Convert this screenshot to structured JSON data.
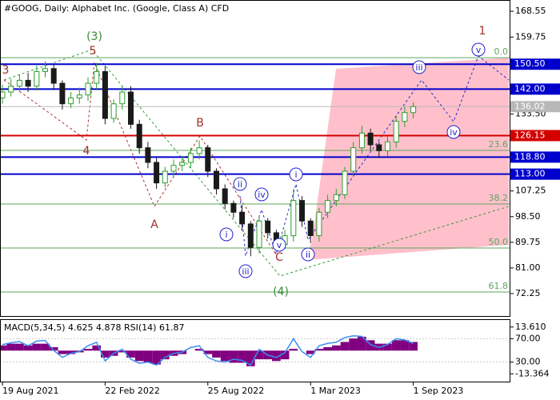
{
  "chart_data": [
    {
      "type": "candlestick",
      "title": "#GOOG, Daily:  Alphabet Inc. (Google, Class A) CFD",
      "categories": [
        "19 Aug 2021",
        null,
        null,
        null,
        null,
        null,
        null,
        null,
        null,
        null,
        null,
        null,
        "22 Feb 2022",
        null,
        null,
        null,
        null,
        null,
        null,
        null,
        null,
        null,
        null,
        null,
        "25 Aug 2022",
        null,
        null,
        null,
        null,
        null,
        null,
        null,
        null,
        null,
        null,
        null,
        "1 Mar 2023",
        null,
        null,
        null,
        null,
        null,
        null,
        null,
        null,
        null,
        null,
        null,
        "1 Sep 2023"
      ],
      "open": [
        139,
        141,
        143,
        145,
        143,
        148,
        149,
        144,
        137,
        139,
        140,
        144,
        148,
        132,
        137,
        141,
        130,
        122,
        117,
        110,
        114,
        116,
        117,
        120,
        122,
        114,
        108,
        103,
        100,
        96,
        88,
        97,
        93,
        89,
        92,
        104,
        97,
        92,
        100,
        104,
        106,
        114,
        122,
        127,
        123,
        121,
        124,
        131,
        134
      ],
      "high": [
        143.5,
        145.5,
        147,
        147.5,
        150,
        151.5,
        150.5,
        145,
        141,
        142.5,
        146,
        151,
        150,
        138.5,
        143,
        143,
        131.5,
        124,
        118.5,
        115.5,
        118,
        119,
        122,
        124.5,
        123,
        115,
        109.5,
        104,
        102.5,
        97,
        99,
        98,
        94,
        94,
        108,
        105.5,
        98,
        101.5,
        106,
        108,
        115.5,
        124,
        129.5,
        128.5,
        124,
        126,
        133,
        136,
        137.5
      ],
      "low": [
        137,
        139.5,
        141,
        141,
        141.5,
        146,
        142,
        135,
        135.5,
        137,
        138,
        142,
        130,
        130.5,
        135,
        128.5,
        120,
        115,
        108,
        108.5,
        112,
        114,
        115,
        118,
        112,
        106,
        101,
        98,
        94,
        85,
        86,
        91,
        87,
        87.5,
        90,
        95,
        89.5,
        90,
        98,
        102,
        104.5,
        112,
        120,
        121,
        118.5,
        119,
        122,
        129,
        132
      ],
      "close": [
        141,
        143,
        145,
        143,
        148,
        149,
        144,
        137,
        139,
        140,
        144,
        148,
        132,
        137,
        141,
        130,
        122,
        117,
        110,
        114,
        116,
        117,
        120,
        122,
        114,
        108,
        103,
        100,
        96,
        88,
        97,
        93,
        89,
        92,
        104,
        97,
        92,
        100,
        104,
        106,
        114,
        122,
        127,
        123,
        121,
        124,
        131,
        134,
        136.02
      ],
      "up_color": "#2e9e2e",
      "down_color": "#1a1a1a",
      "ylim": [
        64.6,
        172.4
      ],
      "yticks": [
        168.55,
        159.75,
        {
          "value": 133.5,
          "label": "133.50"
        },
        107.25,
        {
          "value": 98.5,
          "label": "98.50"
        },
        89.75,
        {
          "value": 81,
          "label": "81.00"
        },
        72.25
      ],
      "levels": [
        {
          "value": 150.5,
          "label": "150.50",
          "color": "#0000cd"
        },
        {
          "value": 142,
          "label": "142.00",
          "color": "#0000cd"
        },
        {
          "value": 126.15,
          "label": "126.15",
          "color": "#d40000"
        },
        {
          "value": 118.8,
          "label": "118.80",
          "color": "#0000cd"
        },
        {
          "value": 113,
          "label": "113.00",
          "color": "#0000cd"
        }
      ],
      "last_price": {
        "value": 136.02,
        "label": "136.02",
        "color": "#b8b8b8"
      },
      "fibonacci": [
        {
          "value": 152.7,
          "label": "0.0"
        },
        {
          "value": 121.1,
          "label": "23.6"
        },
        {
          "value": 102.8,
          "label": "38.2"
        },
        {
          "value": 87.8,
          "label": "50.0"
        },
        {
          "value": 72.8,
          "label": "61.8"
        }
      ],
      "fib_color": "#5fa55f",
      "annotations": [
        "3",
        "(3)",
        "5",
        "4",
        "B",
        "A",
        "i",
        "ii",
        "iii",
        "iv",
        "v",
        "C",
        "(4)",
        "i",
        "ii",
        "iii",
        "iv",
        "v",
        "1"
      ]
    },
    {
      "type": "indicator",
      "label": "MACD(5,34,5) 4.625 4.878 RSI(14) 61.87",
      "ylim": [
        -17.86,
        17.66
      ],
      "yticks": [
        {
          "value": 13.61,
          "label": "13.610"
        },
        {
          "value": -13.364,
          "label": "-13.364"
        }
      ],
      "y2lim": [
        -3.3,
        102
      ],
      "y2ticks": [
        {
          "value": 70,
          "label": "70.00"
        },
        {
          "value": 30,
          "label": "30.00"
        }
      ],
      "macd_color": "#800080",
      "macd_values": [
        3,
        4,
        4,
        3,
        4,
        4,
        2,
        -2,
        -2,
        -1,
        1,
        3,
        -4,
        -3,
        -1,
        -4,
        -6,
        -7,
        -8,
        -5,
        -3,
        -2,
        0,
        1,
        -2,
        -4,
        -6,
        -7,
        -7,
        -9,
        -5,
        -5,
        -6,
        -5,
        1,
        0,
        -2,
        1,
        2,
        3,
        5,
        7,
        8,
        6,
        4,
        4,
        6,
        6,
        5
      ],
      "rsi_color": "#3a8ef0",
      "rsi_values": [
        60,
        63,
        65,
        58,
        66,
        67,
        50,
        38,
        45,
        48,
        58,
        64,
        32,
        45,
        52,
        35,
        28,
        30,
        25,
        38,
        45,
        47,
        55,
        58,
        38,
        32,
        30,
        35,
        33,
        25,
        52,
        42,
        38,
        46,
        70,
        48,
        38,
        58,
        62,
        64,
        72,
        75,
        74,
        60,
        55,
        60,
        70,
        68,
        62
      ]
    }
  ]
}
